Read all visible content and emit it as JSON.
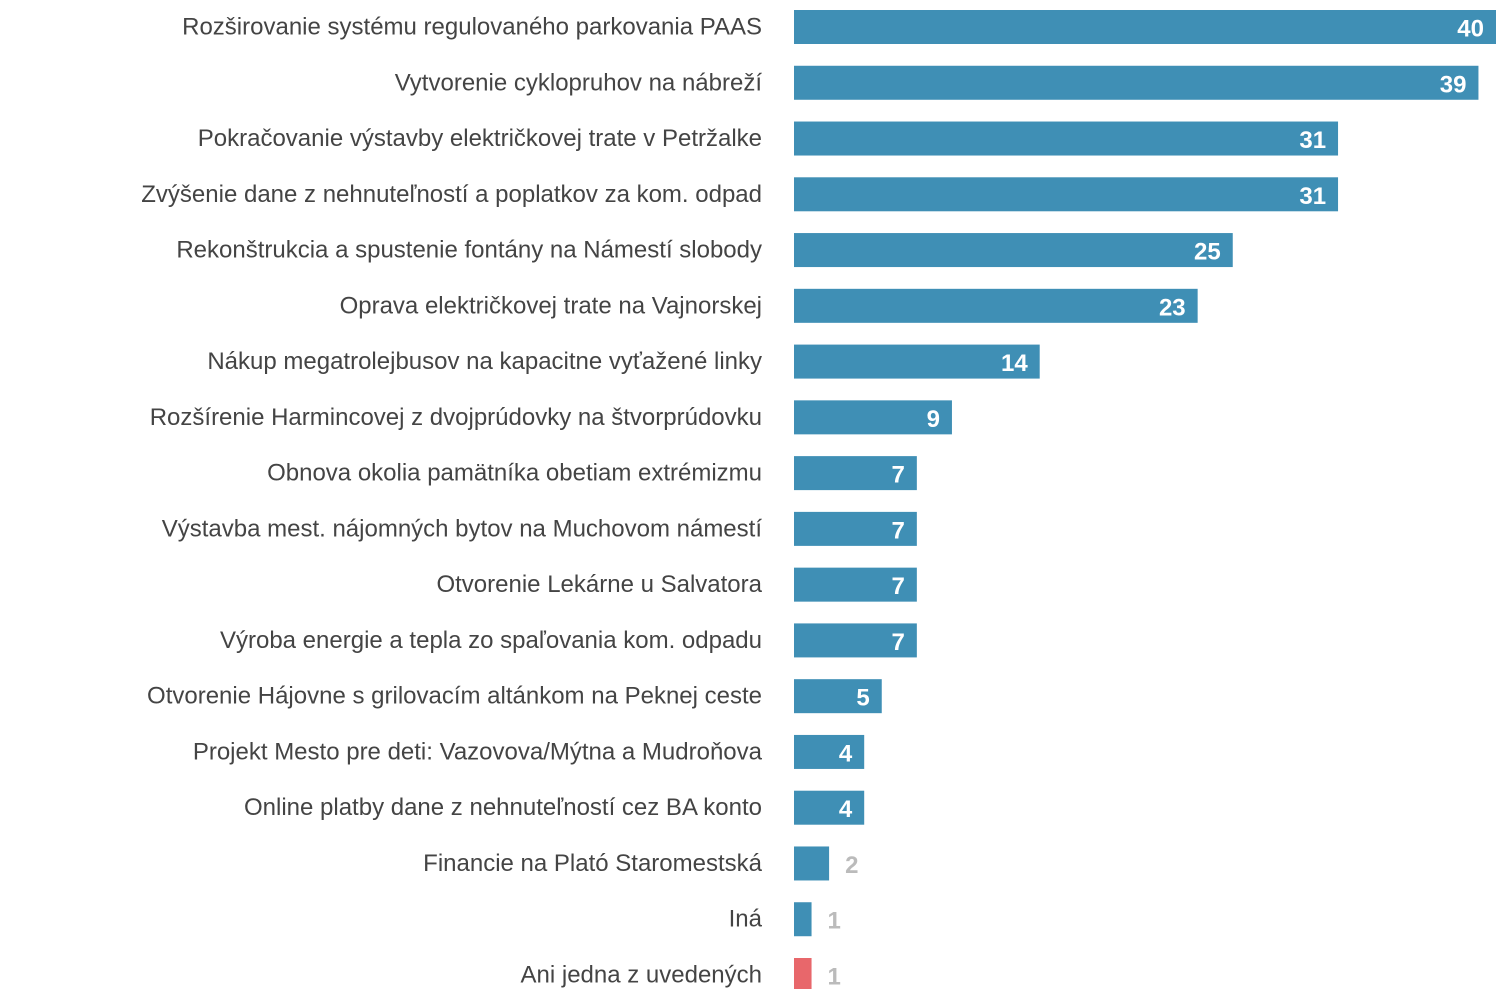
{
  "chart_data": {
    "type": "hbar",
    "categories": [
      "Rozširovanie systému regulovaného parkovania PAAS",
      "Vytvorenie cyklopruhov na nábreží",
      "Pokračovanie výstavby električkovej trate v Petržalke",
      "Zvýšenie dane z nehnuteľností a poplatkov za kom. odpad",
      "Rekonštrukcia a spustenie fontány na Námestí slobody",
      "Oprava električkovej trate na Vajnorskej",
      "Nákup megatrolejbusov na kapacitne vyťažené linky",
      "Rozšírenie Harmincovej z dvojprúdovky na štvorprúdovku",
      "Obnova okolia pamätníka obetiam extrémizmu",
      "Výstavba mest. nájomných bytov na Muchovom námestí",
      "Otvorenie Lekárne u Salvatora",
      "Výroba energie a tepla zo spaľovania kom. odpadu",
      "Otvorenie Hájovne s grilovacím altánkom na Peknej ceste",
      "Projekt Mesto pre deti: Vazovova/Mýtna a Mudroňova",
      "Online platby dane z nehnuteľností cez BA konto",
      "Financie na Plató Staromestská",
      "Iná",
      "Ani jedna z uvedených"
    ],
    "values": [
      40,
      39,
      31,
      31,
      25,
      23,
      14,
      9,
      7,
      7,
      7,
      7,
      5,
      4,
      4,
      2,
      1,
      1
    ],
    "colors": [
      "#3f8fb5",
      "#3f8fb5",
      "#3f8fb5",
      "#3f8fb5",
      "#3f8fb5",
      "#3f8fb5",
      "#3f8fb5",
      "#3f8fb5",
      "#3f8fb5",
      "#3f8fb5",
      "#3f8fb5",
      "#3f8fb5",
      "#3f8fb5",
      "#3f8fb5",
      "#3f8fb5",
      "#3f8fb5",
      "#3f8fb5",
      "#e8676b"
    ],
    "xlim": [
      0,
      40
    ]
  }
}
